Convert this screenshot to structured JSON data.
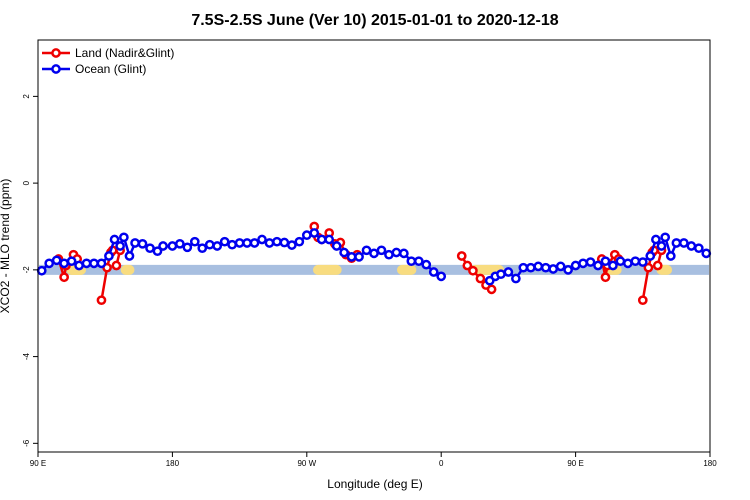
{
  "chart_data": {
    "type": "line",
    "title": "7.5S-2.5S June (Ver 10)   2015-01-01 to 2020-12-18",
    "xlabel": "Longitude (deg E)",
    "ylabel": "XCO2 - MLO trend (ppm)",
    "xlim": [
      90,
      450
    ],
    "ylim": [
      -6.2,
      3.3
    ],
    "x_ticks": [
      {
        "value": 90,
        "label": "90 E"
      },
      {
        "value": 162,
        "label": "180"
      },
      {
        "value": 234,
        "label": "90 W"
      },
      {
        "value": 306,
        "label": "0"
      },
      {
        "value": 378,
        "label": "90 E"
      },
      {
        "value": 450,
        "label": "180"
      }
    ],
    "y_ticks": [
      {
        "value": 2,
        "label": "2"
      },
      {
        "value": 0,
        "label": "0"
      },
      {
        "value": -2,
        "label": "-2"
      },
      {
        "value": -4,
        "label": "-4"
      },
      {
        "value": -6,
        "label": "-6"
      }
    ],
    "land_mask_band": {
      "y_center": -2.0,
      "ocean_color": "#a8bfe0",
      "land_color": "#f8dc80",
      "land_segments": [
        [
          137,
          139
        ],
        [
          240,
          250
        ],
        [
          108,
          110
        ],
        [
          110,
          113
        ],
        [
          108,
          113
        ],
        [
          285,
          290
        ],
        [
          324,
          337
        ],
        [
          397,
          400
        ],
        [
          424,
          427
        ]
      ]
    },
    "series": [
      {
        "name": "Land (Nadir&Glint)",
        "color": "#ee0000",
        "segments": [
          [
            [
              101,
              -1.75
            ],
            [
              104,
              -2.17
            ],
            [
              105,
              -1.9
            ],
            [
              109,
              -1.65
            ],
            [
              111,
              -1.75
            ]
          ],
          [
            [
              124,
              -2.7
            ],
            [
              127,
              -1.95
            ],
            [
              129,
              -1.6
            ],
            [
              130,
              -1.55
            ]
          ],
          [
            [
              132,
              -1.9
            ],
            [
              134,
              -1.55
            ]
          ],
          [
            [
              238,
              -1.0
            ],
            [
              240,
              -1.25
            ],
            [
              242,
              -1.3
            ],
            [
              246,
              -1.15
            ],
            [
              249,
              -1.4
            ],
            [
              252,
              -1.37
            ],
            [
              255,
              -1.65
            ],
            [
              258,
              -1.73
            ],
            [
              261,
              -1.65
            ]
          ],
          [
            [
              317,
              -1.68
            ],
            [
              320,
              -1.9
            ],
            [
              323,
              -2.02
            ],
            [
              327,
              -2.2
            ],
            [
              330,
              -2.35
            ],
            [
              333,
              -2.45
            ]
          ],
          [
            [
              392,
              -1.75
            ],
            [
              394,
              -2.17
            ],
            [
              395,
              -1.9
            ],
            [
              399,
              -1.65
            ],
            [
              401,
              -1.75
            ]
          ],
          [
            [
              414,
              -2.7
            ],
            [
              417,
              -1.95
            ],
            [
              419,
              -1.6
            ],
            [
              420,
              -1.55
            ]
          ],
          [
            [
              422,
              -1.9
            ],
            [
              424,
              -1.55
            ]
          ]
        ]
      },
      {
        "name": "Ocean (Glint)",
        "color": "#0000ee",
        "segments": [
          [
            [
              92,
              -2.02
            ],
            [
              96,
              -1.85
            ],
            [
              100,
              -1.78
            ],
            [
              104,
              -1.85
            ],
            [
              108,
              -1.8
            ],
            [
              112,
              -1.9
            ],
            [
              116,
              -1.85
            ],
            [
              120,
              -1.85
            ],
            [
              124,
              -1.85
            ],
            [
              128,
              -1.68
            ],
            [
              131,
              -1.3
            ],
            [
              134,
              -1.45
            ],
            [
              136,
              -1.25
            ],
            [
              139,
              -1.68
            ],
            [
              142,
              -1.38
            ],
            [
              146,
              -1.4
            ],
            [
              150,
              -1.5
            ],
            [
              154,
              -1.57
            ],
            [
              157,
              -1.45
            ],
            [
              162,
              -1.45
            ],
            [
              166,
              -1.4
            ],
            [
              170,
              -1.48
            ],
            [
              174,
              -1.35
            ],
            [
              178,
              -1.5
            ],
            [
              182,
              -1.42
            ],
            [
              186,
              -1.45
            ],
            [
              190,
              -1.35
            ],
            [
              194,
              -1.42
            ],
            [
              198,
              -1.38
            ],
            [
              202,
              -1.38
            ],
            [
              206,
              -1.38
            ],
            [
              210,
              -1.3
            ],
            [
              214,
              -1.38
            ],
            [
              218,
              -1.35
            ],
            [
              222,
              -1.37
            ],
            [
              226,
              -1.43
            ],
            [
              230,
              -1.35
            ],
            [
              234,
              -1.2
            ],
            [
              238,
              -1.15
            ],
            [
              242,
              -1.3
            ],
            [
              246,
              -1.3
            ],
            [
              250,
              -1.45
            ],
            [
              254,
              -1.6
            ],
            [
              258,
              -1.7
            ],
            [
              262,
              -1.7
            ],
            [
              266,
              -1.55
            ],
            [
              270,
              -1.62
            ],
            [
              274,
              -1.55
            ],
            [
              278,
              -1.65
            ],
            [
              282,
              -1.6
            ],
            [
              286,
              -1.62
            ],
            [
              290,
              -1.8
            ],
            [
              294,
              -1.8
            ],
            [
              298,
              -1.88
            ],
            [
              302,
              -2.05
            ],
            [
              306,
              -2.15
            ]
          ],
          [
            [
              332,
              -2.25
            ],
            [
              335,
              -2.15
            ],
            [
              338,
              -2.1
            ],
            [
              342,
              -2.05
            ],
            [
              346,
              -2.2
            ],
            [
              350,
              -1.95
            ],
            [
              354,
              -1.95
            ],
            [
              358,
              -1.92
            ],
            [
              362,
              -1.95
            ],
            [
              366,
              -1.98
            ],
            [
              370,
              -1.92
            ],
            [
              374,
              -2.0
            ],
            [
              378,
              -1.9
            ],
            [
              382,
              -1.85
            ],
            [
              386,
              -1.82
            ],
            [
              390,
              -1.9
            ],
            [
              394,
              -1.8
            ],
            [
              398,
              -1.9
            ],
            [
              402,
              -1.8
            ],
            [
              406,
              -1.85
            ],
            [
              410,
              -1.8
            ],
            [
              414,
              -1.82
            ],
            [
              418,
              -1.68
            ],
            [
              421,
              -1.3
            ],
            [
              424,
              -1.45
            ],
            [
              426,
              -1.25
            ],
            [
              429,
              -1.68
            ],
            [
              432,
              -1.38
            ],
            [
              436,
              -1.38
            ],
            [
              440,
              -1.45
            ],
            [
              444,
              -1.5
            ],
            [
              448,
              -1.62
            ]
          ]
        ]
      }
    ],
    "legend": {
      "position": "top-left",
      "entries": [
        "Land (Nadir&Glint)",
        "Ocean (Glint)"
      ]
    }
  }
}
